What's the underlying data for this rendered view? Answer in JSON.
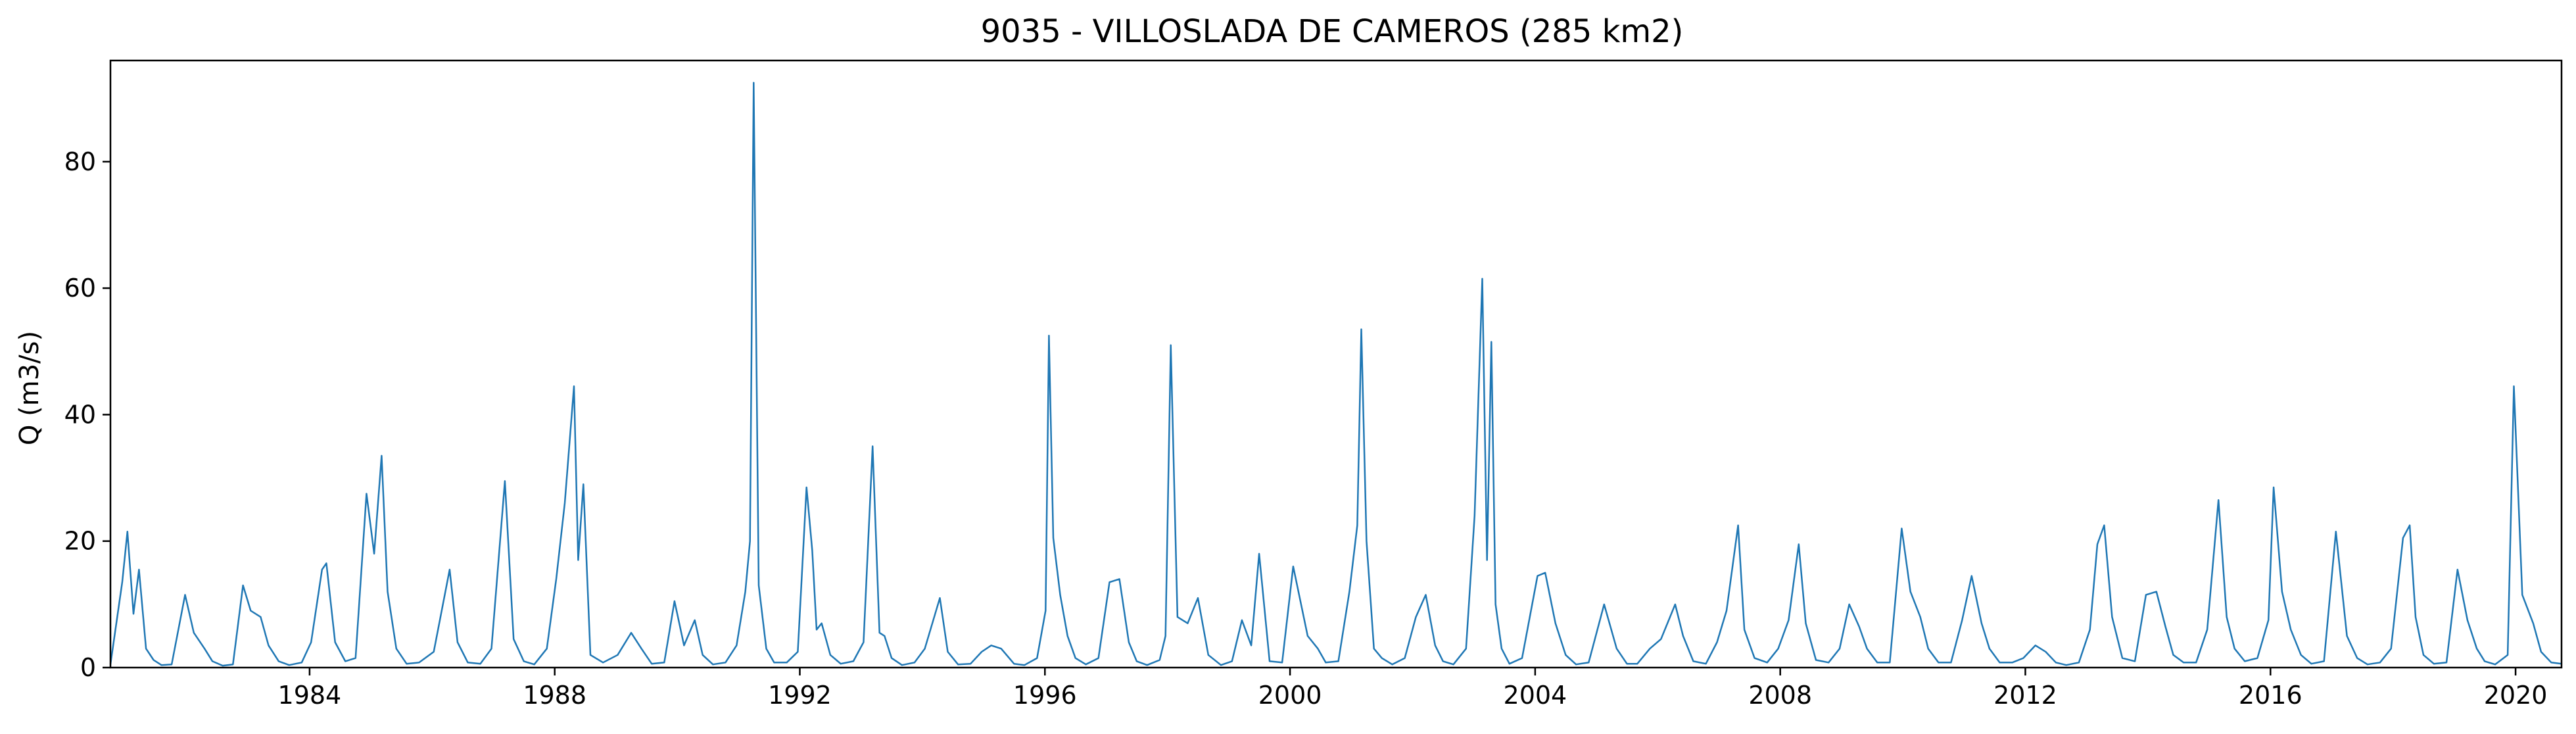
{
  "chart_data": {
    "type": "line",
    "title": "9035 - VILLOSLADA DE CAMEROS (285 km2)",
    "xlabel": "",
    "ylabel": "Q (m3/s)",
    "xlim": [
      "1980-10-01",
      "2020-10-01"
    ],
    "ylim": [
      0,
      96
    ],
    "xticks": [
      "1984",
      "1988",
      "1992",
      "1996",
      "2000",
      "2004",
      "2008",
      "2012",
      "2016",
      "2020"
    ],
    "yticks": [
      0,
      20,
      40,
      60,
      80
    ],
    "grid": false,
    "line_color": "#1f77b4",
    "series": [
      {
        "x": [
          "1980-10-01",
          "1980-12-10",
          "1981-01-10",
          "1981-02-15",
          "1981-03-20",
          "1981-05-01",
          "1981-06-15",
          "1981-08-01",
          "1981-10-01",
          "1981-12-20",
          "1982-02-10",
          "1982-04-15",
          "1982-06-01",
          "1982-08-01",
          "1982-10-01",
          "1982-11-30",
          "1983-01-15",
          "1983-03-15",
          "1983-05-01",
          "1983-07-01",
          "1983-09-01",
          "1983-11-15",
          "1984-01-10",
          "1984-03-15",
          "1984-04-10",
          "1984-06-01",
          "1984-08-01",
          "1984-10-01",
          "1984-12-05",
          "1985-01-20",
          "1985-03-05",
          "1985-04-10",
          "1985-06-01",
          "1985-08-01",
          "1985-10-15",
          "1986-01-10",
          "1986-04-15",
          "1986-06-01",
          "1986-08-01",
          "1986-10-15",
          "1986-12-20",
          "1987-03-10",
          "1987-05-01",
          "1987-07-01",
          "1987-09-01",
          "1987-11-15",
          "1988-01-10",
          "1988-03-01",
          "1988-04-25",
          "1988-05-20",
          "1988-06-20",
          "1988-08-01",
          "1988-10-15",
          "1989-01-10",
          "1989-04-01",
          "1989-06-01",
          "1989-08-01",
          "1989-10-15",
          "1989-12-15",
          "1990-02-10",
          "1990-04-15",
          "1990-06-01",
          "1990-08-01",
          "1990-10-15",
          "1990-12-20",
          "1991-02-10",
          "1991-03-10",
          "1991-04-01",
          "1991-05-01",
          "1991-06-15",
          "1991-08-01",
          "1991-10-15",
          "1991-12-20",
          "1992-02-10",
          "1992-03-15",
          "1992-04-10",
          "1992-05-10",
          "1992-07-01",
          "1992-09-01",
          "1992-11-15",
          "1993-01-15",
          "1993-03-10",
          "1993-04-20",
          "1993-05-20",
          "1993-07-01",
          "1993-09-01",
          "1993-11-15",
          "1994-01-15",
          "1994-04-15",
          "1994-06-01",
          "1994-08-01",
          "1994-10-15",
          "1994-12-20",
          "1995-02-15",
          "1995-04-15",
          "1995-07-01",
          "1995-09-01",
          "1995-11-15",
          "1996-01-05",
          "1996-01-25",
          "1996-02-20",
          "1996-04-01",
          "1996-05-15",
          "1996-07-01",
          "1996-09-01",
          "1996-11-15",
          "1997-01-20",
          "1997-03-20",
          "1997-05-15",
          "1997-07-01",
          "1997-09-01",
          "1997-11-15",
          "1997-12-20",
          "1998-01-20",
          "1998-03-01",
          "1998-05-01",
          "1998-07-01",
          "1998-09-01",
          "1998-11-15",
          "1999-01-20",
          "1999-03-20",
          "1999-05-15",
          "1999-07-01",
          "1999-09-01",
          "1999-11-15",
          "2000-01-20",
          "2000-04-15",
          "2000-06-15",
          "2000-08-01",
          "2000-10-15",
          "2000-12-20",
          "2001-02-05",
          "2001-03-01",
          "2001-04-01",
          "2001-05-15",
          "2001-07-01",
          "2001-09-01",
          "2001-11-15",
          "2002-01-20",
          "2002-03-20",
          "2002-05-15",
          "2002-07-01",
          "2002-09-01",
          "2002-11-15",
          "2003-01-05",
          "2003-02-20",
          "2003-03-20",
          "2003-04-15",
          "2003-05-10",
          "2003-06-15",
          "2003-08-01",
          "2003-10-15",
          "2004-01-15",
          "2004-03-01",
          "2004-05-01",
          "2004-07-01",
          "2004-09-01",
          "2004-11-15",
          "2005-02-15",
          "2005-05-01",
          "2005-07-01",
          "2005-09-01",
          "2005-11-15",
          "2006-01-20",
          "2006-04-15",
          "2006-06-01",
          "2006-08-01",
          "2006-10-15",
          "2006-12-20",
          "2007-02-15",
          "2007-04-25",
          "2007-06-01",
          "2007-08-01",
          "2007-10-15",
          "2007-12-20",
          "2008-02-20",
          "2008-04-20",
          "2008-06-01",
          "2008-08-01",
          "2008-10-15",
          "2008-12-20",
          "2009-02-15",
          "2009-04-15",
          "2009-06-01",
          "2009-08-01",
          "2009-10-15",
          "2009-12-25",
          "2010-02-15",
          "2010-04-15",
          "2010-06-01",
          "2010-08-01",
          "2010-10-15",
          "2010-12-20",
          "2011-02-15",
          "2011-04-15",
          "2011-06-01",
          "2011-08-01",
          "2011-10-15",
          "2011-12-20",
          "2012-03-01",
          "2012-05-01",
          "2012-07-01",
          "2012-09-01",
          "2012-11-15",
          "2013-01-20",
          "2013-03-05",
          "2013-04-15",
          "2013-06-01",
          "2013-08-01",
          "2013-10-15",
          "2013-12-20",
          "2014-02-20",
          "2014-04-15",
          "2014-06-01",
          "2014-08-01",
          "2014-10-15",
          "2014-12-20",
          "2015-02-25",
          "2015-04-15",
          "2015-06-01",
          "2015-08-01",
          "2015-10-15",
          "2015-12-20",
          "2016-01-20",
          "2016-03-10",
          "2016-05-01",
          "2016-07-01",
          "2016-09-01",
          "2016-11-15",
          "2017-01-25",
          "2017-04-01",
          "2017-06-01",
          "2017-08-01",
          "2017-10-15",
          "2017-12-20",
          "2018-03-01",
          "2018-04-10",
          "2018-05-15",
          "2018-07-01",
          "2018-09-01",
          "2018-11-15",
          "2019-01-20",
          "2019-03-20",
          "2019-05-15",
          "2019-07-01",
          "2019-09-01",
          "2019-11-15",
          "2019-12-22",
          "2020-02-10",
          "2020-04-15",
          "2020-06-01",
          "2020-08-01",
          "2020-10-01"
        ],
        "y": [
          0.5,
          13.5,
          21.5,
          8.5,
          15.5,
          3.0,
          1.2,
          0.4,
          0.5,
          11.5,
          5.5,
          3.0,
          1.0,
          0.3,
          0.5,
          13.0,
          9.0,
          8.0,
          3.5,
          1.0,
          0.4,
          0.8,
          4.0,
          15.5,
          16.5,
          4.0,
          1.0,
          1.5,
          27.5,
          18.0,
          33.5,
          12.0,
          3.0,
          0.6,
          0.8,
          2.5,
          15.5,
          4.0,
          0.8,
          0.6,
          3.0,
          29.5,
          4.5,
          1.0,
          0.5,
          3.0,
          14.0,
          26.0,
          44.5,
          17.0,
          29.0,
          2.0,
          0.8,
          2.0,
          5.5,
          3.0,
          0.6,
          0.8,
          10.5,
          3.5,
          7.5,
          2.0,
          0.5,
          0.8,
          3.5,
          12.0,
          20.0,
          92.5,
          13.0,
          3.0,
          0.8,
          0.8,
          2.5,
          28.5,
          18.5,
          6.0,
          7.0,
          2.0,
          0.6,
          1.0,
          4.0,
          35.0,
          5.5,
          5.0,
          1.5,
          0.4,
          0.8,
          3.0,
          11.0,
          2.5,
          0.5,
          0.6,
          2.5,
          3.5,
          3.0,
          0.6,
          0.4,
          1.5,
          9.0,
          52.5,
          20.5,
          11.5,
          5.0,
          1.5,
          0.5,
          1.5,
          13.5,
          14.0,
          4.0,
          1.0,
          0.4,
          1.2,
          5.0,
          51.0,
          8.0,
          7.0,
          11.0,
          2.0,
          0.4,
          1.0,
          7.5,
          3.5,
          18.0,
          1.0,
          0.8,
          16.0,
          5.0,
          3.0,
          0.8,
          1.0,
          12.0,
          22.5,
          53.5,
          20.0,
          3.0,
          1.5,
          0.5,
          1.5,
          8.0,
          11.5,
          3.5,
          1.0,
          0.5,
          3.0,
          24.0,
          61.5,
          17.0,
          51.5,
          10.0,
          3.0,
          0.6,
          1.5,
          14.5,
          15.0,
          7.0,
          2.0,
          0.5,
          0.8,
          10.0,
          3.0,
          0.6,
          0.6,
          3.0,
          4.5,
          10.0,
          5.0,
          1.0,
          0.6,
          4.0,
          9.0,
          22.5,
          6.0,
          1.5,
          0.8,
          3.0,
          7.5,
          19.5,
          7.0,
          1.2,
          0.8,
          3.0,
          10.0,
          6.5,
          3.0,
          0.8,
          0.8,
          22.0,
          12.0,
          8.0,
          3.0,
          0.8,
          0.8,
          7.5,
          14.5,
          7.0,
          3.0,
          0.8,
          0.8,
          1.5,
          3.5,
          2.5,
          0.8,
          0.4,
          0.8,
          6.0,
          19.5,
          22.5,
          8.0,
          1.5,
          1.0,
          11.5,
          12.0,
          6.5,
          2.0,
          0.8,
          0.8,
          6.0,
          26.5,
          8.0,
          3.0,
          1.0,
          1.5,
          7.5,
          28.5,
          12.0,
          6.0,
          2.0,
          0.6,
          1.0,
          21.5,
          5.0,
          1.5,
          0.5,
          0.8,
          3.0,
          20.5,
          22.5,
          8.0,
          2.0,
          0.6,
          0.8,
          15.5,
          7.5,
          3.0,
          1.0,
          0.5,
          2.0,
          44.5,
          11.5,
          7.0,
          2.5,
          0.8,
          0.6
        ]
      }
    ]
  }
}
